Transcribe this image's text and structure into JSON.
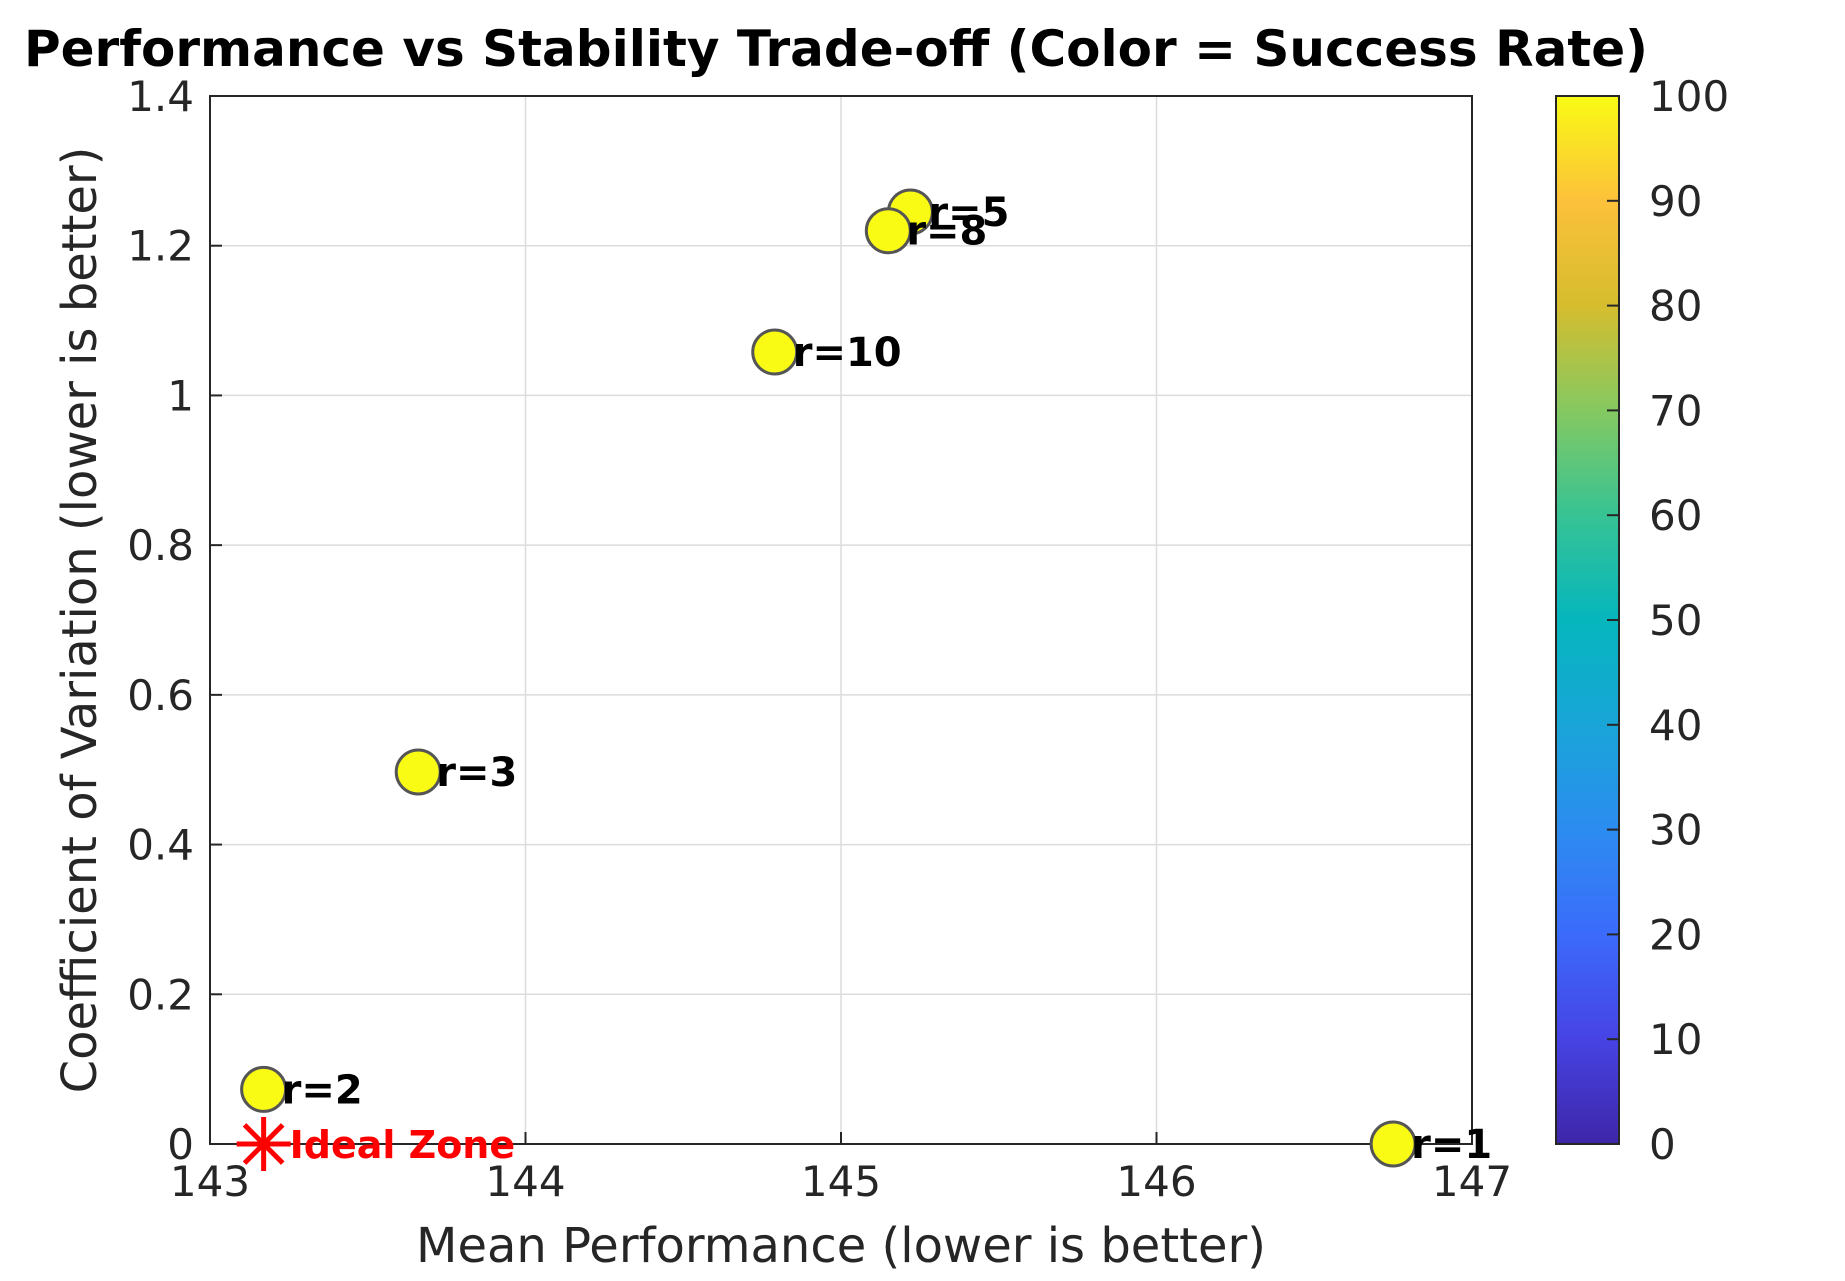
{
  "chart_data": {
    "type": "scatter",
    "title": "Performance vs Stability Trade-off (Color = Success Rate)",
    "xlabel": "Mean Performance (lower is better)",
    "ylabel": "Coefficient of Variation (lower is better)",
    "xlim": [
      143,
      147
    ],
    "ylim": [
      0,
      1.4
    ],
    "x_ticks": [
      "143",
      "144",
      "145",
      "146",
      "147"
    ],
    "y_ticks": [
      "0",
      "0.2",
      "0.4",
      "0.6",
      "0.8",
      "1",
      "1.2",
      "1.4"
    ],
    "grid": true,
    "points": [
      {
        "label": "r=1",
        "x": 146.75,
        "y": 0.0,
        "success_rate": 100
      },
      {
        "label": "r=2",
        "x": 143.17,
        "y": 0.073,
        "success_rate": 100
      },
      {
        "label": "r=3",
        "x": 143.66,
        "y": 0.497,
        "success_rate": 100
      },
      {
        "label": "r=5",
        "x": 145.22,
        "y": 1.245,
        "success_rate": 100
      },
      {
        "label": "r=8",
        "x": 145.15,
        "y": 1.22,
        "success_rate": 100
      },
      {
        "label": "r=10",
        "x": 144.79,
        "y": 1.058,
        "success_rate": 100
      }
    ],
    "ideal_marker": {
      "x": 143.17,
      "y": 0.0,
      "label": "Ideal Zone",
      "color": "#ff0000"
    },
    "colorbar": {
      "range": [
        0,
        100
      ],
      "ticks": [
        "0",
        "10",
        "20",
        "30",
        "40",
        "50",
        "60",
        "70",
        "80",
        "90",
        "100"
      ],
      "colormap": "parula"
    }
  }
}
